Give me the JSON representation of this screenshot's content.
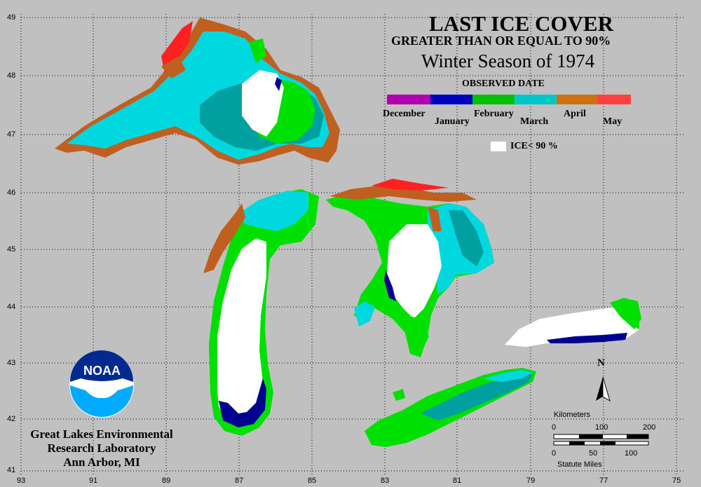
{
  "title": "LAST ICE COVER",
  "subtitle": "GREATER THAN OR EQUAL TO 90%",
  "season": "Winter Season of 1974",
  "legend": {
    "heading": "OBSERVED DATE",
    "months": [
      "December",
      "January",
      "February",
      "March",
      "April",
      "May"
    ],
    "gradient": [
      {
        "colors": [
          "#800080",
          "#ff00ff"
        ]
      },
      {
        "colors": [
          "#000080",
          "#0000ff"
        ]
      },
      {
        "colors": [
          "#008000",
          "#00ff00"
        ]
      },
      {
        "colors": [
          "#008080",
          "#00ffff"
        ]
      },
      {
        "colors": [
          "#b05000",
          "#ff9900"
        ]
      },
      {
        "colors": [
          "#ff0000",
          "#ff9999"
        ]
      }
    ],
    "ice_label": "ICE< 90 %"
  },
  "latitude_labels": [
    "49",
    "48",
    "47",
    "46",
    "45",
    "44",
    "43",
    "42",
    "41"
  ],
  "longitude_labels": [
    "93",
    "91",
    "89",
    "87",
    "85",
    "83",
    "81",
    "79",
    "77",
    "75"
  ],
  "scale": {
    "km_label": "Kilometers",
    "km_ticks": [
      "0",
      "100",
      "200"
    ],
    "mi_ticks": [
      "0",
      "50",
      "100"
    ],
    "mi_label": "Statute Miles"
  },
  "north": "N",
  "logo_text": "NOAA",
  "lab": {
    "line1": "Great Lakes Environmental",
    "line2": "Research Laboratory",
    "line3": "Ann Arbor, MI"
  },
  "colors": {
    "background": "#c0c0c0",
    "white_ice": "#ffffff",
    "march_cyan": "#00e0e8",
    "march_teal": "#009898",
    "february_green": "#00e800",
    "january_blue": "#000090",
    "april_brown": "#c06020",
    "may_red": "#ff2020"
  }
}
